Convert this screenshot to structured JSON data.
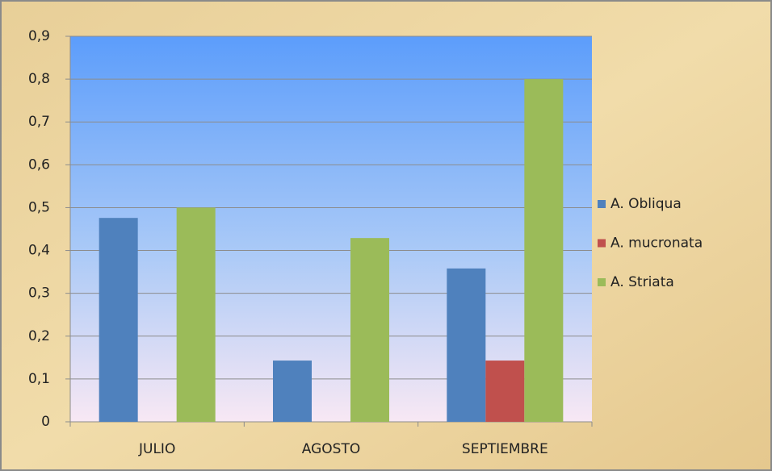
{
  "chart_data": {
    "type": "bar",
    "categories": [
      "JULIO",
      "AGOSTO",
      "SEPTIEMBRE"
    ],
    "series": [
      {
        "name": "A. Obliqua",
        "color": "#4f81bd",
        "values": [
          0.476,
          0.143,
          0.358
        ]
      },
      {
        "name": "A. mucronata",
        "color": "#c0504d",
        "values": [
          0,
          0,
          0.143
        ]
      },
      {
        "name": "A. Striata",
        "color": "#9bbb59",
        "values": [
          0.5,
          0.429,
          0.8
        ]
      }
    ],
    "ylim": [
      0,
      0.9
    ],
    "yticks": [
      0,
      {
        "value": 0.1,
        "label": "0,1"
      },
      {
        "value": 0.2,
        "label": "0,2"
      },
      {
        "value": 0.3,
        "label": "0,3"
      },
      {
        "value": 0.4,
        "label": "0,4"
      },
      {
        "value": 0.5,
        "label": "0,5"
      },
      {
        "value": 0.6,
        "label": "0,6"
      },
      {
        "value": 0.7,
        "label": "0,7"
      },
      {
        "value": 0.8,
        "label": "0,8"
      },
      {
        "value": 0.9,
        "label": "0,9"
      }
    ],
    "grid": true,
    "legend": "right"
  }
}
